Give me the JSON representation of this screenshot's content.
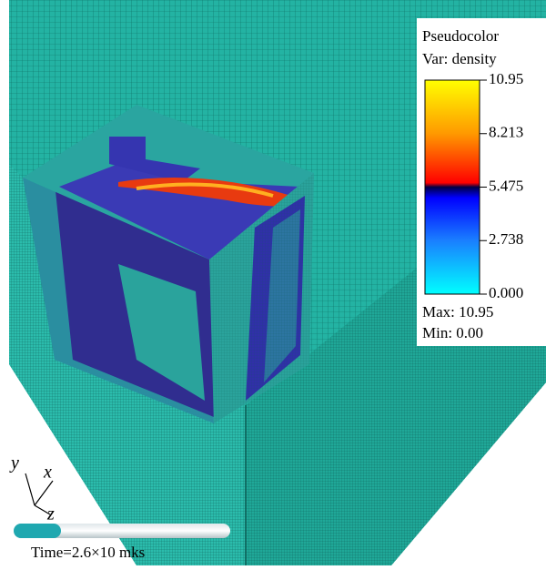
{
  "legend": {
    "title": "Pseudocolor",
    "variable": "Var: density",
    "ticks": [
      "10.95",
      "8.213",
      "5.475",
      "2.738",
      "0.000"
    ],
    "max": "Max: 10.95",
    "min": "Min:  0.00"
  },
  "axes": {
    "y": "y",
    "x": "x",
    "z": "z"
  },
  "time": "Time=2.6×10 mks"
}
